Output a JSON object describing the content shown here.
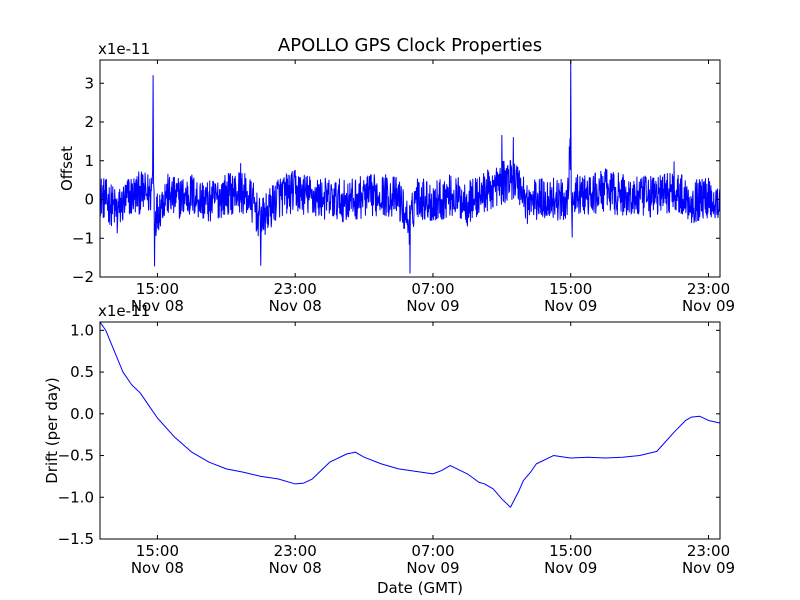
{
  "figure_title": "APOLLO GPS Clock Properties",
  "colors": {
    "series": "#0000ff",
    "axes": "#000000",
    "background": "#ffffff"
  },
  "chart_data": [
    {
      "type": "line",
      "title": "APOLLO GPS Clock Properties",
      "ylabel": "Offset",
      "xlabel": "",
      "scale_label": "x1e-11",
      "xlim": [
        "2008-11-08T11:40",
        "2008-11-09T23:40"
      ],
      "ylim": [
        -2,
        3.6
      ],
      "yticks": [
        -2,
        -1,
        0,
        1,
        2,
        3
      ],
      "ytick_labels": [
        "−2",
        "−1",
        "0",
        "1",
        "2",
        "3"
      ],
      "xticks": [
        "2008-11-08T15:00",
        "2008-11-08T23:00",
        "2008-11-09T07:00",
        "2008-11-09T15:00",
        "2008-11-09T23:00"
      ],
      "xtick_labels": [
        [
          "15:00",
          "Nov 08"
        ],
        [
          "23:00",
          "Nov 08"
        ],
        [
          "07:00",
          "Nov 09"
        ],
        [
          "15:00",
          "Nov 09"
        ],
        [
          "23:00",
          "Nov 09"
        ]
      ],
      "grid": false,
      "series": [
        {
          "x": [
            "2008-11-08T11:40",
            "2008-11-08T12:10",
            "2008-11-08T12:40",
            "2008-11-08T13:20",
            "2008-11-08T14:00",
            "2008-11-08T14:40",
            "2008-11-08T14:45",
            "2008-11-08T14:50",
            "2008-11-08T15:30",
            "2008-11-08T16:00",
            "2008-11-08T17:00",
            "2008-11-08T18:00",
            "2008-11-08T19:00",
            "2008-11-08T19:50",
            "2008-11-08T20:30",
            "2008-11-08T21:00",
            "2008-11-08T22:00",
            "2008-11-08T23:00",
            "2008-11-09T00:00",
            "2008-11-09T01:00",
            "2008-11-09T02:00",
            "2008-11-09T03:00",
            "2008-11-09T04:00",
            "2008-11-09T05:00",
            "2008-11-09T05:40",
            "2008-11-09T06:00",
            "2008-11-09T07:00",
            "2008-11-09T08:00",
            "2008-11-09T09:00",
            "2008-11-09T10:00",
            "2008-11-09T11:00",
            "2008-11-09T11:40",
            "2008-11-09T12:00",
            "2008-11-09T12:30",
            "2008-11-09T13:00",
            "2008-11-09T14:00",
            "2008-11-09T14:45",
            "2008-11-09T15:00",
            "2008-11-09T15:05",
            "2008-11-09T15:20",
            "2008-11-09T16:00",
            "2008-11-09T17:00",
            "2008-11-09T18:00",
            "2008-11-09T19:00",
            "2008-11-09T20:00",
            "2008-11-09T21:00",
            "2008-11-09T22:00",
            "2008-11-09T23:00",
            "2008-11-09T23:40"
          ],
          "values": [
            0.3,
            -0.2,
            -0.8,
            0.2,
            0.5,
            0.4,
            3.2,
            -1.3,
            0.4,
            0.1,
            0.3,
            -0.2,
            0.4,
            0.6,
            -0.1,
            -1.7,
            0.2,
            0.6,
            0.2,
            0.0,
            -0.1,
            0.2,
            0.4,
            0.1,
            -1.9,
            0.3,
            -0.2,
            0.3,
            -0.2,
            0.5,
            1.2,
            1.6,
            1.1,
            -0.3,
            0.0,
            0.1,
            -0.2,
            3.6,
            -1.2,
            0.4,
            0.2,
            0.7,
            0.3,
            0.1,
            0.3,
            0.7,
            -0.2,
            0.2,
            -0.3
          ]
        }
      ]
    },
    {
      "type": "line",
      "ylabel": "Drift (per day)",
      "xlabel": "Date (GMT)",
      "scale_label": "x1e-11",
      "xlim": [
        "2008-11-08T11:40",
        "2008-11-09T23:40"
      ],
      "ylim": [
        -1.5,
        1.1
      ],
      "yticks": [
        -1.5,
        -1.0,
        -0.5,
        0.0,
        0.5,
        1.0
      ],
      "ytick_labels": [
        "−1.5",
        "−1.0",
        "−0.5",
        "0.0",
        "0.5",
        "1.0"
      ],
      "xticks": [
        "2008-11-08T15:00",
        "2008-11-08T23:00",
        "2008-11-09T07:00",
        "2008-11-09T15:00",
        "2008-11-09T23:00"
      ],
      "xtick_labels": [
        [
          "15:00",
          "Nov 08"
        ],
        [
          "23:00",
          "Nov 08"
        ],
        [
          "07:00",
          "Nov 09"
        ],
        [
          "15:00",
          "Nov 09"
        ],
        [
          "23:00",
          "Nov 09"
        ]
      ],
      "grid": false,
      "series": [
        {
          "x": [
            "2008-11-08T11:40",
            "2008-11-08T12:00",
            "2008-11-08T12:30",
            "2008-11-08T13:00",
            "2008-11-08T13:30",
            "2008-11-08T14:00",
            "2008-11-08T14:30",
            "2008-11-08T15:00",
            "2008-11-08T16:00",
            "2008-11-08T17:00",
            "2008-11-08T18:00",
            "2008-11-08T19:00",
            "2008-11-08T20:00",
            "2008-11-08T21:00",
            "2008-11-08T22:00",
            "2008-11-08T23:00",
            "2008-11-08T23:30",
            "2008-11-09T00:00",
            "2008-11-09T01:00",
            "2008-11-09T02:00",
            "2008-11-09T02:30",
            "2008-11-09T03:00",
            "2008-11-09T04:00",
            "2008-11-09T05:00",
            "2008-11-09T06:00",
            "2008-11-09T07:00",
            "2008-11-09T07:30",
            "2008-11-09T08:00",
            "2008-11-09T09:00",
            "2008-11-09T09:40",
            "2008-11-09T10:00",
            "2008-11-09T10:30",
            "2008-11-09T11:00",
            "2008-11-09T11:30",
            "2008-11-09T12:00",
            "2008-11-09T12:15",
            "2008-11-09T12:40",
            "2008-11-09T13:00",
            "2008-11-09T14:00",
            "2008-11-09T14:40",
            "2008-11-09T15:00",
            "2008-11-09T16:00",
            "2008-11-09T17:00",
            "2008-11-09T18:00",
            "2008-11-09T19:00",
            "2008-11-09T20:00",
            "2008-11-09T21:00",
            "2008-11-09T21:40",
            "2008-11-09T22:00",
            "2008-11-09T22:30",
            "2008-11-09T23:00",
            "2008-11-09T23:40"
          ],
          "values": [
            1.1,
            1.0,
            0.75,
            0.5,
            0.35,
            0.25,
            0.1,
            -0.05,
            -0.28,
            -0.46,
            -0.58,
            -0.66,
            -0.7,
            -0.75,
            -0.78,
            -0.84,
            -0.83,
            -0.78,
            -0.58,
            -0.48,
            -0.46,
            -0.52,
            -0.6,
            -0.66,
            -0.69,
            -0.72,
            -0.68,
            -0.62,
            -0.72,
            -0.82,
            -0.84,
            -0.9,
            -1.02,
            -1.12,
            -0.92,
            -0.8,
            -0.7,
            -0.6,
            -0.5,
            -0.52,
            -0.53,
            -0.52,
            -0.53,
            -0.52,
            -0.5,
            -0.45,
            -0.22,
            -0.08,
            -0.04,
            -0.03,
            -0.08,
            -0.11
          ]
        }
      ]
    }
  ]
}
